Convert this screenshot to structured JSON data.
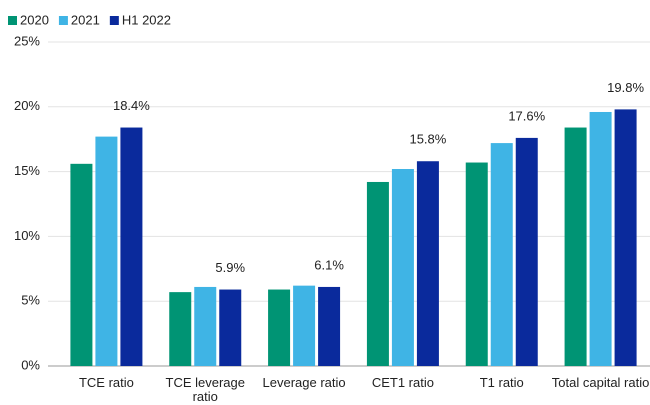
{
  "chart_data": {
    "type": "bar",
    "categories": [
      "TCE ratio",
      "TCE leverage ratio",
      "Leverage ratio",
      "CET1 ratio",
      "T1 ratio",
      "Total capital ratio"
    ],
    "series": [
      {
        "name": "2020",
        "color": "#009474",
        "values": [
          15.6,
          5.7,
          5.9,
          14.2,
          15.7,
          18.4
        ]
      },
      {
        "name": "2021",
        "color": "#3fb4e5",
        "values": [
          17.7,
          6.1,
          6.2,
          15.2,
          17.2,
          19.6
        ]
      },
      {
        "name": "H1 2022",
        "color": "#0a2a9c",
        "values": [
          18.4,
          5.9,
          6.1,
          15.8,
          17.6,
          19.8
        ],
        "value_labels": [
          "18.4%",
          "5.9%",
          "6.1%",
          "15.8%",
          "17.6%",
          "19.8%"
        ]
      }
    ],
    "ylim": [
      0,
      25
    ],
    "yticks": [
      {
        "value": 0,
        "label": "0%"
      },
      {
        "value": 5,
        "label": "5%"
      },
      {
        "value": 10,
        "label": "10%"
      },
      {
        "value": 15,
        "label": "15%"
      },
      {
        "value": 20,
        "label": "20%"
      },
      {
        "value": 25,
        "label": "25%"
      }
    ],
    "grid": true,
    "legend": "top-left"
  }
}
